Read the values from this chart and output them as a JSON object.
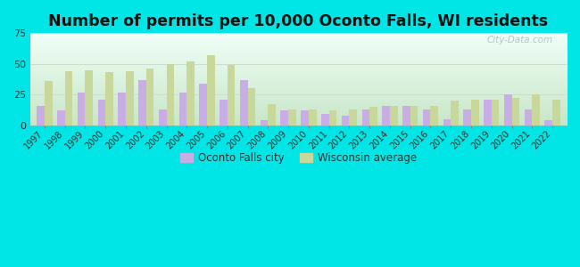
{
  "title": "Number of permits per 10,000 Oconto Falls, WI residents",
  "years": [
    1997,
    1998,
    1999,
    2000,
    2001,
    2002,
    2003,
    2004,
    2005,
    2006,
    2007,
    2008,
    2009,
    2010,
    2011,
    2012,
    2013,
    2014,
    2015,
    2016,
    2017,
    2018,
    2019,
    2020,
    2021,
    2022
  ],
  "city_values": [
    16,
    12,
    27,
    21,
    27,
    37,
    13,
    27,
    34,
    21,
    37,
    4,
    12,
    12,
    9,
    8,
    13,
    16,
    16,
    13,
    5,
    13,
    21,
    25,
    13,
    4
  ],
  "state_values": [
    36,
    44,
    45,
    43,
    44,
    46,
    50,
    52,
    57,
    49,
    30,
    17,
    13,
    13,
    12,
    13,
    15,
    16,
    16,
    16,
    20,
    21,
    21,
    22,
    25,
    21
  ],
  "city_color": "#c9aee5",
  "state_color": "#c8d89a",
  "ylim": [
    0,
    75
  ],
  "yticks": [
    0,
    25,
    50,
    75
  ],
  "bg_color": "#00e5e5",
  "plot_bg_gradient_top": "#f0fff8",
  "plot_bg_gradient_bottom": "#d8f0d8",
  "legend_city": "Oconto Falls city",
  "legend_state": "Wisconsin average",
  "bar_width": 0.38,
  "title_fontsize": 12.5,
  "grid_color": "#ccddcc",
  "watermark": "City-Data.com"
}
